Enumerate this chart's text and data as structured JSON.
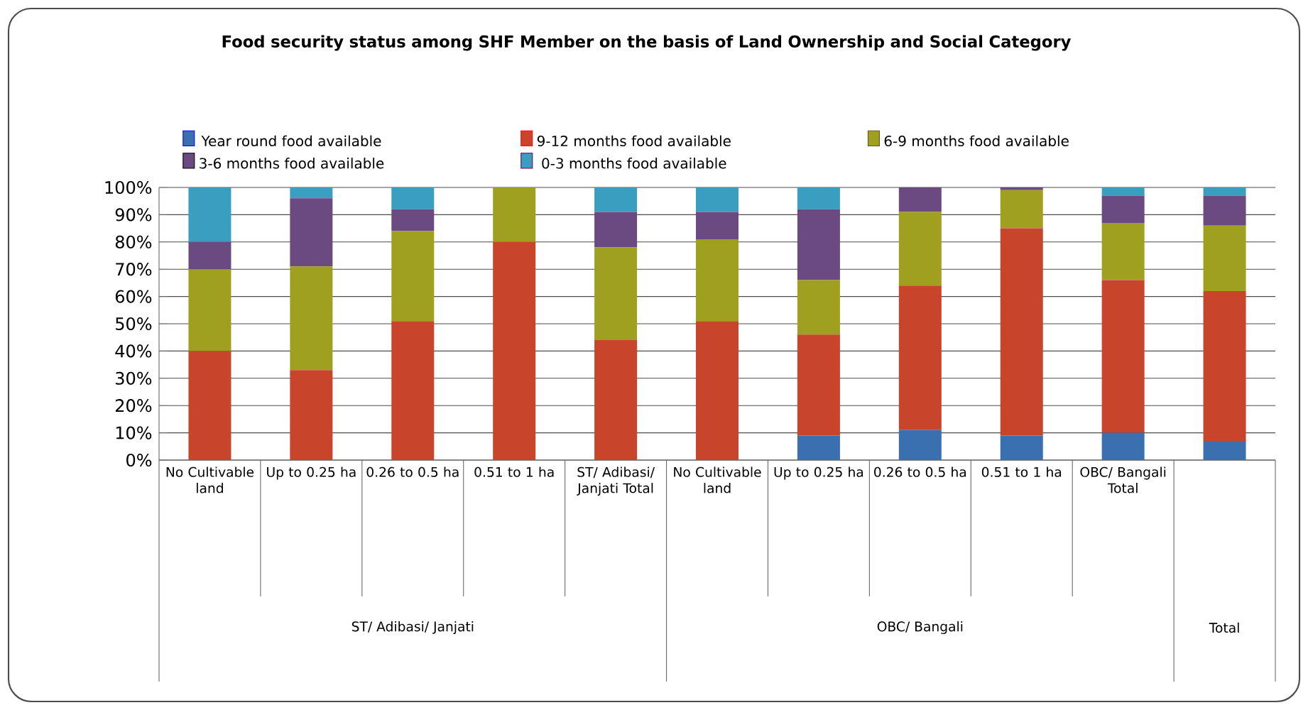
{
  "chart_data": {
    "type": "bar",
    "stacked": true,
    "title": "Food security status among SHF Member on the basis of Land Ownership and Social Category",
    "categories": [
      "No Cultivable land",
      "Up to 0.25 ha",
      "0.26 to 0.5 ha",
      "0.51 to 1 ha",
      "ST/ Adibasi/ Janjati Total",
      "No Cultivable land",
      "Up to 0.25 ha",
      "0.26 to 0.5 ha",
      "0.51 to 1 ha",
      "OBC/ Bangali Total",
      null
    ],
    "series": [
      {
        "name": "Year round food available",
        "color": "#3a6fb0",
        "values": [
          0,
          0,
          0,
          0,
          0,
          0,
          9,
          11,
          9,
          10,
          7
        ]
      },
      {
        "name": "9-12 months food available",
        "color": "#c8442a",
        "values": [
          40,
          33,
          51,
          80,
          44,
          51,
          37,
          53,
          76,
          56,
          55
        ]
      },
      {
        "name": "6-9 months food available",
        "color": "#a0a020",
        "values": [
          30,
          38,
          33,
          20,
          34,
          30,
          20,
          27,
          14,
          21,
          24
        ]
      },
      {
        "name": "3-6 months food available",
        "color": "#6a4a80",
        "values": [
          10,
          25,
          8,
          0,
          13,
          10,
          26,
          9,
          1,
          10,
          11
        ]
      },
      {
        "name": "0-3 months food available",
        "color": "#3a9ec0",
        "values": [
          20,
          4,
          8,
          0,
          9,
          9,
          8,
          0,
          0,
          3,
          3
        ]
      }
    ],
    "annotations": [
      "ST/ Adibasi/ Janjati",
      "OBC/ Bangali",
      "Total"
    ],
    "ylim": [
      0,
      100
    ],
    "yticks": [
      {
        "value": 0,
        "label": "0%"
      },
      {
        "value": 10,
        "label": "10%"
      },
      {
        "value": 20,
        "label": "20%"
      },
      {
        "value": 30,
        "label": "30%"
      },
      {
        "value": 40,
        "label": "40%"
      },
      {
        "value": 50,
        "label": "50%"
      },
      {
        "value": 60,
        "label": "60%"
      },
      {
        "value": 70,
        "label": "70%"
      },
      {
        "value": 80,
        "label": "80%"
      },
      {
        "value": 90,
        "label": "90%"
      },
      {
        "value": 100,
        "label": "100%"
      }
    ],
    "grid": "y",
    "legend": "top"
  }
}
